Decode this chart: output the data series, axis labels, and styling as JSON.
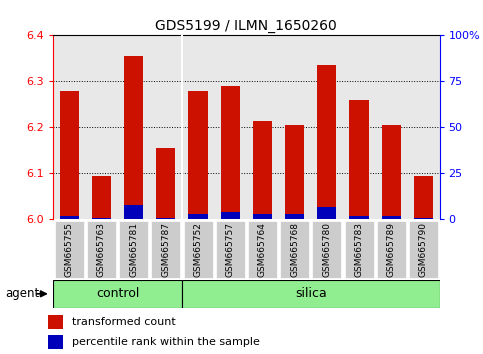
{
  "title": "GDS5199 / ILMN_1650260",
  "samples": [
    "GSM665755",
    "GSM665763",
    "GSM665781",
    "GSM665787",
    "GSM665752",
    "GSM665757",
    "GSM665764",
    "GSM665768",
    "GSM665780",
    "GSM665783",
    "GSM665789",
    "GSM665790"
  ],
  "transformed_counts": [
    6.28,
    6.095,
    6.355,
    6.155,
    6.28,
    6.29,
    6.215,
    6.205,
    6.335,
    6.26,
    6.205,
    6.095
  ],
  "percentile_ranks": [
    2,
    1,
    8,
    1,
    3,
    4,
    3,
    3,
    7,
    2,
    2,
    1
  ],
  "ylim_left": [
    6.0,
    6.4
  ],
  "ylim_right": [
    0,
    100
  ],
  "yticks_left": [
    6.0,
    6.1,
    6.2,
    6.3,
    6.4
  ],
  "yticks_right": [
    0,
    25,
    50,
    75,
    100
  ],
  "ytick_labels_right": [
    "0",
    "25",
    "50",
    "75",
    "100%"
  ],
  "bar_color_red": "#CC1100",
  "bar_color_blue": "#0000BB",
  "plot_bg_color": "#E8E8E8",
  "tick_bg_color": "#CCCCCC",
  "control_color": "#90EE90",
  "silica_color": "#90EE90",
  "agent_label": "agent",
  "control_label": "control",
  "silica_label": "silica",
  "legend_red_label": "transformed count",
  "legend_blue_label": "percentile rank within the sample",
  "n_control": 4,
  "n_silica": 8,
  "n_total": 12
}
